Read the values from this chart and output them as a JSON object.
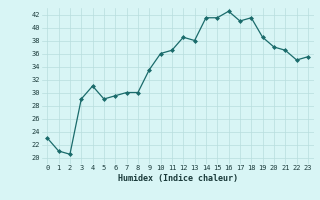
{
  "x": [
    0,
    1,
    2,
    3,
    4,
    5,
    6,
    7,
    8,
    9,
    10,
    11,
    12,
    13,
    14,
    15,
    16,
    17,
    18,
    19,
    20,
    21,
    22,
    23
  ],
  "y": [
    23,
    21,
    20.5,
    29,
    31,
    29,
    29.5,
    30,
    30,
    33.5,
    36,
    36.5,
    38.5,
    38,
    41.5,
    41.5,
    42.5,
    41,
    41.5,
    38.5,
    37,
    36.5,
    35,
    35.5
  ],
  "xlabel": "Humidex (Indice chaleur)",
  "xlim": [
    -0.5,
    23.5
  ],
  "ylim": [
    19,
    43
  ],
  "yticks": [
    20,
    22,
    24,
    26,
    28,
    30,
    32,
    34,
    36,
    38,
    40,
    42
  ],
  "xticks": [
    0,
    1,
    2,
    3,
    4,
    5,
    6,
    7,
    8,
    9,
    10,
    11,
    12,
    13,
    14,
    15,
    16,
    17,
    18,
    19,
    20,
    21,
    22,
    23
  ],
  "line_color": "#1a6b6b",
  "marker_color": "#1a6b6b",
  "bg_color": "#d8f5f5",
  "grid_color": "#b8dede",
  "label_color": "#1a3a3a"
}
